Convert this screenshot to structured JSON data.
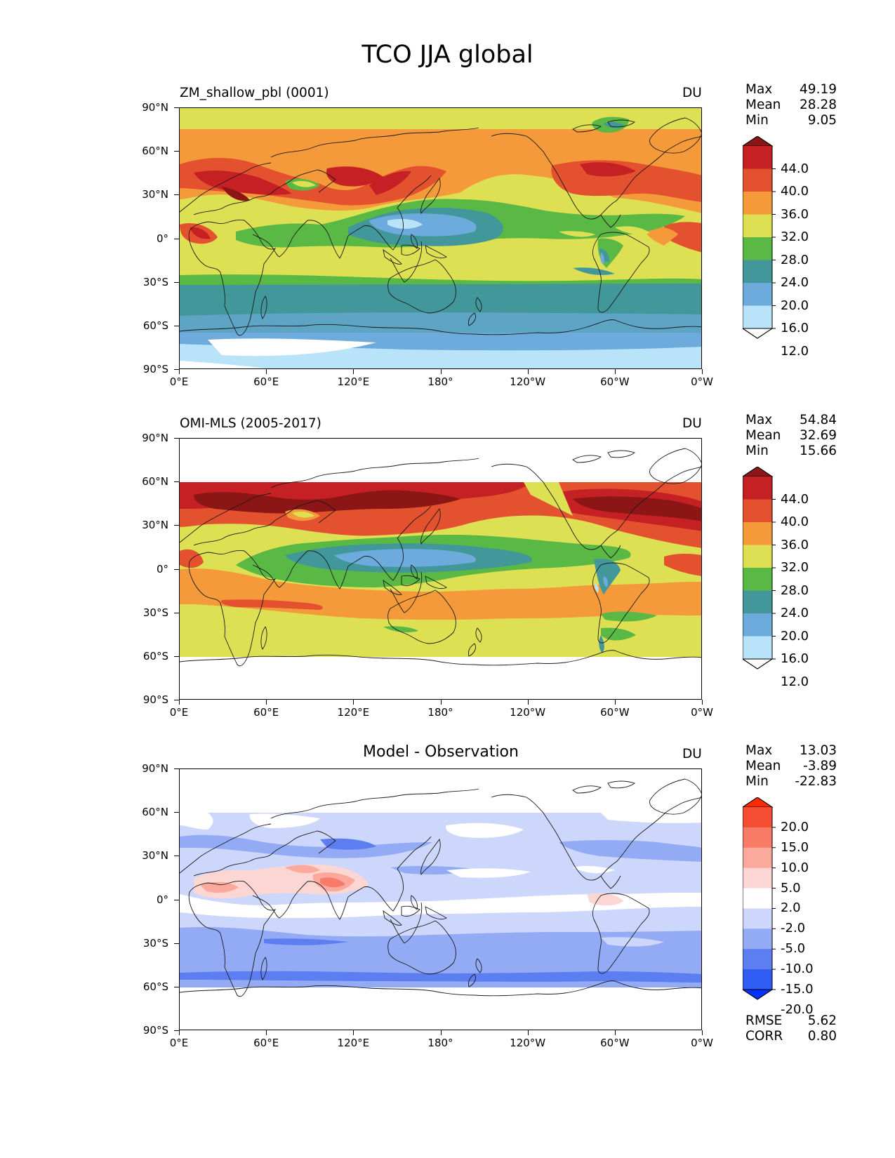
{
  "figure_title": "TCO JJA global",
  "lat_ticks": [
    "90°N",
    "60°N",
    "30°N",
    "0°",
    "30°S",
    "60°S",
    "90°S"
  ],
  "lon_ticks": [
    "0°E",
    "60°E",
    "120°E",
    "180°",
    "120°W",
    "60°W",
    "0°W"
  ],
  "panels": [
    {
      "title": "ZM_shallow_pbl (0001)",
      "units": "DU",
      "stats": [
        {
          "label": "Max",
          "value": "49.19"
        },
        {
          "label": "Mean",
          "value": "28.28"
        },
        {
          "label": "Min",
          "value": "9.05"
        }
      ],
      "colorbar_labels": [
        "44.0",
        "40.0",
        "36.0",
        "32.0",
        "28.0",
        "24.0",
        "20.0",
        "16.0",
        "12.0"
      ]
    },
    {
      "title": "OMI-MLS (2005-2017)",
      "units": "DU",
      "stats": [
        {
          "label": "Max",
          "value": "54.84"
        },
        {
          "label": "Mean",
          "value": "32.69"
        },
        {
          "label": "Min",
          "value": "15.66"
        }
      ],
      "colorbar_labels": [
        "44.0",
        "40.0",
        "36.0",
        "32.0",
        "28.0",
        "24.0",
        "20.0",
        "16.0",
        "12.0"
      ]
    },
    {
      "title": "Model - Observation",
      "units": "DU",
      "stats": [
        {
          "label": "Max",
          "value": "13.03"
        },
        {
          "label": "Mean",
          "value": "-3.89"
        },
        {
          "label": "Min",
          "value": "-22.83"
        }
      ],
      "colorbar_labels": [
        "20.0",
        "15.0",
        "10.0",
        "5.0",
        "2.0",
        "-2.0",
        "-5.0",
        "-10.0",
        "-15.0",
        "-20.0"
      ],
      "metrics": [
        {
          "label": "RMSE",
          "value": "5.62"
        },
        {
          "label": "CORR",
          "value": "0.80"
        }
      ]
    }
  ],
  "chart_data": [
    {
      "type": "heatmap",
      "title": "ZM_shallow_pbl (0001)",
      "units": "DU",
      "xlim": [
        0,
        360
      ],
      "ylim": [
        -90,
        90
      ],
      "levels": [
        8,
        12,
        16,
        20,
        24,
        28,
        32,
        36,
        40,
        44,
        48
      ],
      "colors": [
        "#ffffff",
        "#b9e3f8",
        "#6dabdc",
        "#42979a",
        "#5ab844",
        "#dee054",
        "#f49a3a",
        "#e3512f",
        "#c52023",
        "#8c1516"
      ],
      "summary": {
        "max": 49.19,
        "mean": 28.28,
        "min": 9.05
      }
    },
    {
      "type": "heatmap",
      "title": "OMI-MLS (2005-2017)",
      "units": "DU",
      "xlim": [
        0,
        360
      ],
      "ylim": [
        -90,
        90
      ],
      "data_lat_range": [
        -60,
        60
      ],
      "levels": [
        8,
        12,
        16,
        20,
        24,
        28,
        32,
        36,
        40,
        44,
        48
      ],
      "colors": [
        "#ffffff",
        "#b9e3f8",
        "#6dabdc",
        "#42979a",
        "#5ab844",
        "#dee054",
        "#f49a3a",
        "#e3512f",
        "#c52023",
        "#8c1516"
      ],
      "summary": {
        "max": 54.84,
        "mean": 32.69,
        "min": 15.66
      }
    },
    {
      "type": "heatmap",
      "title": "Model - Observation",
      "units": "DU",
      "xlim": [
        0,
        360
      ],
      "ylim": [
        -90,
        90
      ],
      "data_lat_range": [
        -60,
        60
      ],
      "levels": [
        -25,
        -20,
        -15,
        -10,
        -5,
        -2,
        2,
        5,
        10,
        15,
        20,
        25
      ],
      "colors": [
        "#0033ff",
        "#2f5cf2",
        "#5d7ef0",
        "#93aaf5",
        "#cdd7fb",
        "#ffffff",
        "#fcd6d2",
        "#fba99c",
        "#f77b67",
        "#f44d32",
        "#ff2a00"
      ],
      "summary": {
        "max": 13.03,
        "mean": -3.89,
        "min": -22.83,
        "rmse": 5.62,
        "corr": 0.8
      }
    }
  ]
}
